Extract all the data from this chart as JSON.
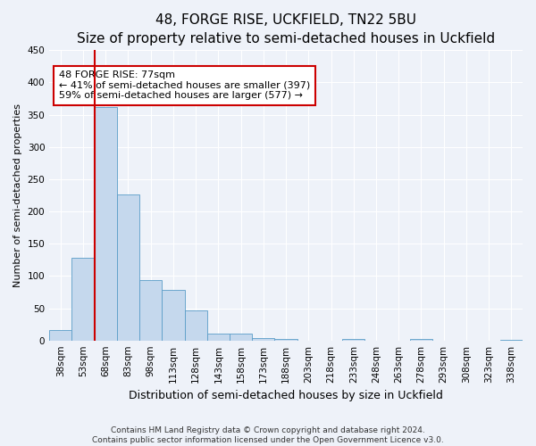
{
  "title": "48, FORGE RISE, UCKFIELD, TN22 5BU",
  "subtitle": "Size of property relative to semi-detached houses in Uckfield",
  "xlabel": "Distribution of semi-detached houses by size in Uckfield",
  "ylabel": "Number of semi-detached properties",
  "categories": [
    "38sqm",
    "53sqm",
    "68sqm",
    "83sqm",
    "98sqm",
    "113sqm",
    "128sqm",
    "143sqm",
    "158sqm",
    "173sqm",
    "188sqm",
    "203sqm",
    "218sqm",
    "233sqm",
    "248sqm",
    "263sqm",
    "278sqm",
    "293sqm",
    "308sqm",
    "323sqm",
    "338sqm"
  ],
  "values": [
    16,
    128,
    362,
    226,
    93,
    79,
    46,
    11,
    10,
    4,
    3,
    0,
    0,
    3,
    0,
    0,
    3,
    0,
    0,
    0,
    1
  ],
  "bar_color": "#c5d8ed",
  "bar_edge_color": "#5a9dc8",
  "property_bin_index": 2,
  "annotation_line1": "48 FORGE RISE: 77sqm",
  "annotation_line2": "← 41% of semi-detached houses are smaller (397)",
  "annotation_line3": "59% of semi-detached houses are larger (577) →",
  "vline_color": "#cc0000",
  "footer1": "Contains HM Land Registry data © Crown copyright and database right 2024.",
  "footer2": "Contains public sector information licensed under the Open Government Licence v3.0.",
  "ylim": [
    0,
    450
  ],
  "yticks": [
    0,
    50,
    100,
    150,
    200,
    250,
    300,
    350,
    400,
    450
  ],
  "background_color": "#eef2f9",
  "grid_color": "#ffffff",
  "title_fontsize": 11,
  "subtitle_fontsize": 9,
  "ylabel_fontsize": 8,
  "xlabel_fontsize": 9,
  "tick_fontsize": 7.5,
  "ann_fontsize": 8,
  "footer_fontsize": 6.5
}
